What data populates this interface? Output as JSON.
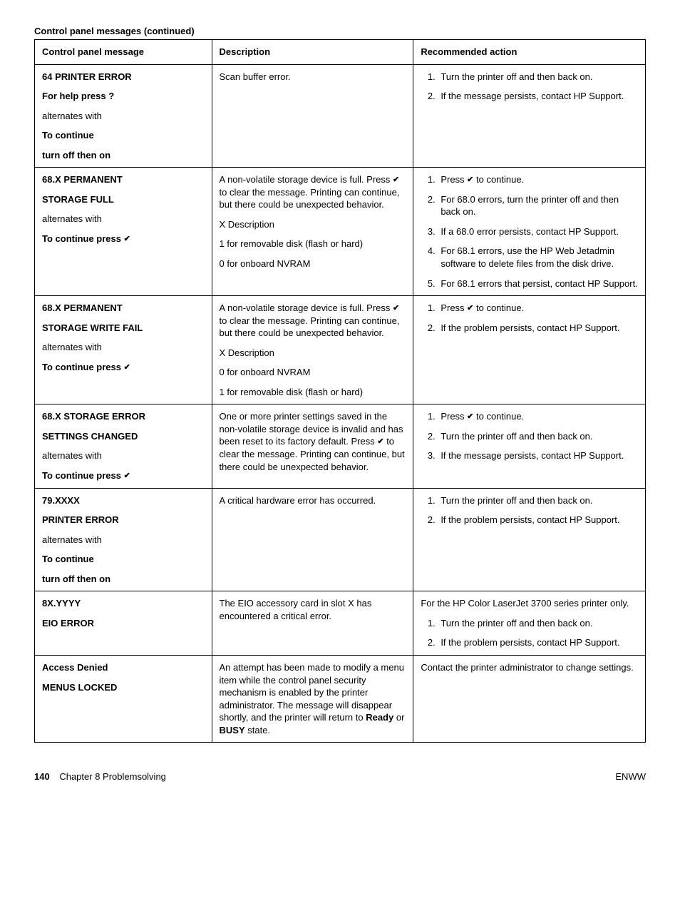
{
  "caption": "Control panel messages (continued)",
  "headers": {
    "c1": "Control panel message",
    "c2": "Description",
    "c3": "Recommended action"
  },
  "glyphs": {
    "check": "✔",
    "question": "?"
  },
  "rows": [
    {
      "message": [
        {
          "text": "64 PRINTER ERROR",
          "bold": true
        },
        {
          "text": "For help press ",
          "bold": true,
          "appendQuestion": true
        },
        {
          "text": "alternates with",
          "bold": false
        },
        {
          "text": "To continue",
          "bold": true
        },
        {
          "text": "turn off then on",
          "bold": true
        }
      ],
      "description": [
        {
          "text": "Scan buffer error."
        }
      ],
      "actionsPre": null,
      "actions": [
        {
          "text": "Turn the printer off and then back on."
        },
        {
          "text": "If the message persists, contact HP Support."
        }
      ]
    },
    {
      "message": [
        {
          "text": "68.X PERMANENT",
          "bold": true
        },
        {
          "text": "STORAGE FULL",
          "bold": true
        },
        {
          "text": "alternates with",
          "bold": false
        },
        {
          "text": "To continue press ",
          "bold": true,
          "appendCheck": true
        }
      ],
      "description": [
        {
          "text": "A non-volatile storage device is full. Press ",
          "appendCheck": true,
          "textAfter": " to clear the message. Printing can continue, but there could be unexpected behavior."
        },
        {
          "text": "X Description"
        },
        {
          "text": "1 for removable disk (flash or hard)"
        },
        {
          "text": "0 for onboard NVRAM"
        }
      ],
      "actionsPre": null,
      "actions": [
        {
          "text": "Press ",
          "appendCheck": true,
          "textAfter": " to continue."
        },
        {
          "text": "For 68.0 errors, turn the printer off and then back on."
        },
        {
          "text": "If a 68.0 error persists, contact HP Support."
        },
        {
          "text": "For 68.1 errors, use the HP Web Jetadmin software to delete files from the disk drive."
        },
        {
          "text": "For 68.1 errors that persist, contact HP Support."
        }
      ]
    },
    {
      "message": [
        {
          "text": "68.X PERMANENT",
          "bold": true
        },
        {
          "text": "STORAGE WRITE FAIL",
          "bold": true
        },
        {
          "text": "alternates with",
          "bold": false
        },
        {
          "text": "To continue press ",
          "bold": true,
          "appendCheck": true
        }
      ],
      "description": [
        {
          "text": "A non-volatile storage device is full. Press ",
          "appendCheck": true,
          "textAfter": " to clear the message. Printing can continue, but there could be unexpected behavior."
        },
        {
          "text": "X Description"
        },
        {
          "text": "0 for onboard NVRAM"
        },
        {
          "text": "1 for removable disk (flash or hard)"
        }
      ],
      "actionsPre": null,
      "actions": [
        {
          "text": "Press ",
          "appendCheck": true,
          "textAfter": " to continue."
        },
        {
          "text": "If the problem persists, contact HP Support."
        }
      ]
    },
    {
      "message": [
        {
          "text": "68.X STORAGE ERROR",
          "bold": true
        },
        {
          "text": "SETTINGS CHANGED",
          "bold": true
        },
        {
          "text": "alternates with",
          "bold": false
        },
        {
          "text": "To continue press ",
          "bold": true,
          "appendCheck": true
        }
      ],
      "description": [
        {
          "text": "One or more printer settings saved in the non-volatile storage device is invalid and has been reset to its factory default. Press ",
          "appendCheck": true,
          "textAfter": " to clear the message. Printing can continue, but there could be unexpected behavior."
        }
      ],
      "actionsPre": null,
      "actions": [
        {
          "text": "Press ",
          "appendCheck": true,
          "textAfter": " to continue."
        },
        {
          "text": "Turn the printer off and then back on."
        },
        {
          "text": "If the message persists, contact HP Support."
        }
      ]
    },
    {
      "message": [
        {
          "text": "79.XXXX",
          "bold": true
        },
        {
          "text": "PRINTER ERROR",
          "bold": true
        },
        {
          "text": "alternates with",
          "bold": false
        },
        {
          "text": "To continue",
          "bold": true
        },
        {
          "text": "turn off then on",
          "bold": true
        }
      ],
      "description": [
        {
          "text": "A critical hardware error has occurred."
        }
      ],
      "actionsPre": null,
      "actions": [
        {
          "text": "Turn the printer off and then back on."
        },
        {
          "text": "If the problem persists, contact HP Support."
        }
      ]
    },
    {
      "message": [
        {
          "text": "8X.YYYY",
          "bold": true
        },
        {
          "text": "EIO ERROR",
          "bold": true
        }
      ],
      "description": [
        {
          "text": "The EIO accessory card in slot X has encountered a critical error."
        }
      ],
      "actionsPre": "For the HP Color LaserJet 3700 series printer only.",
      "actions": [
        {
          "text": "Turn the printer off and then back on."
        },
        {
          "text": "If the problem persists, contact HP Support."
        }
      ]
    },
    {
      "message": [
        {
          "text": "Access Denied",
          "bold": true
        },
        {
          "text": "MENUS LOCKED",
          "bold": true
        }
      ],
      "description": [
        {
          "text": "An attempt has been made to modify a menu item while the control panel security mechanism is enabled by the printer administrator. The message will disappear shortly, and the printer will return to ",
          "appendBold": "Ready",
          "textAfter": " or ",
          "appendBold2": "BUSY",
          "textAfter2": " state."
        }
      ],
      "actionsPre": "Contact the printer administrator to change settings.",
      "actions": []
    }
  ],
  "footer": {
    "page": "140",
    "chapter": "Chapter 8   Problemsolving",
    "right": "ENWW"
  }
}
